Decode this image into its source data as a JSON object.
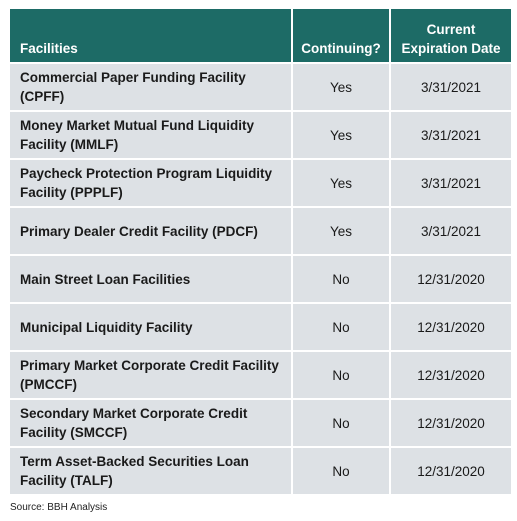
{
  "table": {
    "headers": {
      "facilities": "Facilities",
      "continuing": "Continuing?",
      "expiration_line1": "Current",
      "expiration_line2": "Expiration Date"
    },
    "rows": [
      {
        "facility": "Commercial Paper Funding Facility (CPFF)",
        "continuing": "Yes",
        "expiration": "3/31/2021"
      },
      {
        "facility": "Money Market Mutual Fund Liquidity Facility (MMLF)",
        "continuing": "Yes",
        "expiration": "3/31/2021"
      },
      {
        "facility": "Paycheck Protection Program Liquidity Facility (PPPLF)",
        "continuing": "Yes",
        "expiration": "3/31/2021"
      },
      {
        "facility": "Primary Dealer Credit Facility (PDCF)",
        "continuing": "Yes",
        "expiration": "3/31/2021"
      },
      {
        "facility": "Main Street Loan Facilities",
        "continuing": "No",
        "expiration": "12/31/2020"
      },
      {
        "facility": "Municipal Liquidity Facility",
        "continuing": "No",
        "expiration": "12/31/2020"
      },
      {
        "facility": "Primary Market Corporate Credit Facility (PMCCF)",
        "continuing": "No",
        "expiration": "12/31/2020"
      },
      {
        "facility": "Secondary Market Corporate Credit Facility (SMCCF)",
        "continuing": "No",
        "expiration": "12/31/2020"
      },
      {
        "facility": "Term Asset-Backed Securities Loan Facility (TALF)",
        "continuing": "No",
        "expiration": "12/31/2020"
      }
    ]
  },
  "source": "Source: BBH Analysis",
  "colors": {
    "header_background": "#1d6b66",
    "header_text": "#ffffff",
    "row_background": "#dde1e5"
  }
}
